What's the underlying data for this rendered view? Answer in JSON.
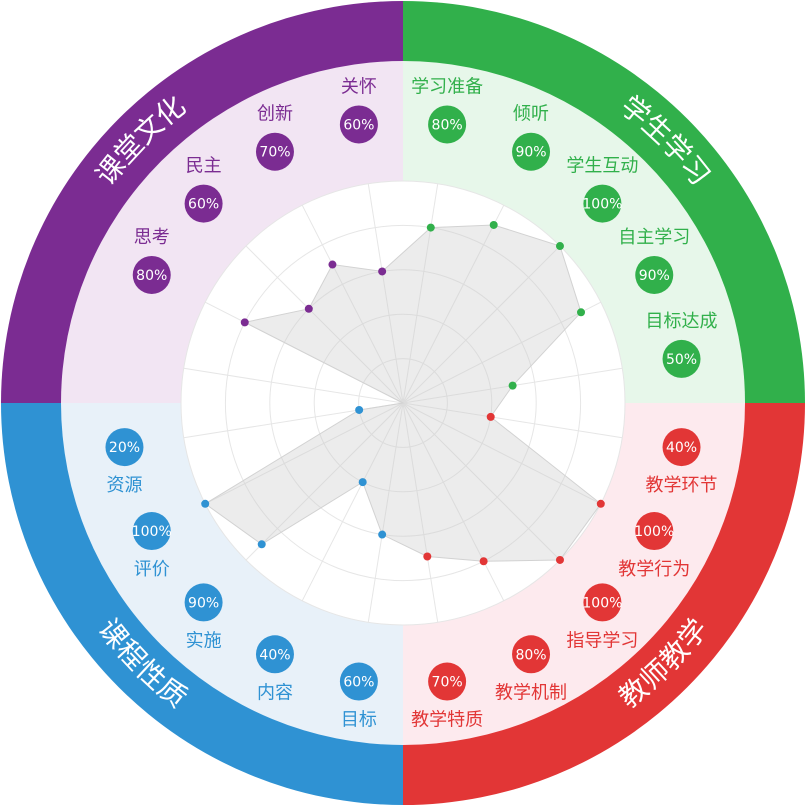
{
  "chart_data": {
    "type": "radar",
    "max": 100,
    "unit": "%",
    "grid": true,
    "quadrants": [
      {
        "name": "学生学习",
        "color": "#31b04b",
        "light": "#e7f7ea",
        "items": [
          {
            "label": "学习准备",
            "value": 80,
            "value_label": "80%"
          },
          {
            "label": "倾听",
            "value": 90,
            "value_label": "90%"
          },
          {
            "label": "学生互动",
            "value": 100,
            "value_label": "100%"
          },
          {
            "label": "自主学习",
            "value": 90,
            "value_label": "90%"
          },
          {
            "label": "目标达成",
            "value": 50,
            "value_label": "50%"
          }
        ]
      },
      {
        "name": "教师教学",
        "color": "#e23636",
        "light": "#fdeaee",
        "items": [
          {
            "label": "教学环节",
            "value": 40,
            "value_label": "40%"
          },
          {
            "label": "教学行为",
            "value": 100,
            "value_label": "100%"
          },
          {
            "label": "指导学习",
            "value": 100,
            "value_label": "100%"
          },
          {
            "label": "教学机制",
            "value": 80,
            "value_label": "80%"
          },
          {
            "label": "教学特质",
            "value": 70,
            "value_label": "70%"
          }
        ]
      },
      {
        "name": "课程性质",
        "color": "#2f92d3",
        "light": "#e8f1f9",
        "items": [
          {
            "label": "目标",
            "value": 60,
            "value_label": "60%"
          },
          {
            "label": "内容",
            "value": 40,
            "value_label": "40%"
          },
          {
            "label": "实施",
            "value": 90,
            "value_label": "90%"
          },
          {
            "label": "评价",
            "value": 100,
            "value_label": "100%"
          },
          {
            "label": "资源",
            "value": 20,
            "value_label": "20%"
          }
        ]
      },
      {
        "name": "课堂文化",
        "color": "#7b2c92",
        "light": "#f2e5f3",
        "items": [
          {
            "label": "思考",
            "value": 80,
            "value_label": "80%"
          },
          {
            "label": "民主",
            "value": 60,
            "value_label": "60%"
          },
          {
            "label": "创新",
            "value": 70,
            "value_label": "70%"
          },
          {
            "label": "关怀",
            "value": 60,
            "value_label": "60%"
          }
        ]
      }
    ]
  }
}
